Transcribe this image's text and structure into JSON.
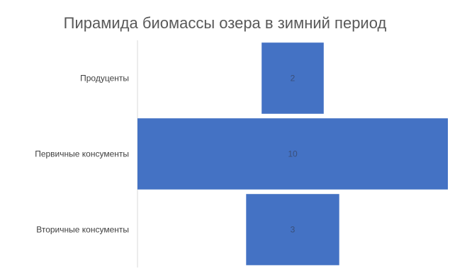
{
  "chart_data": {
    "type": "bar",
    "orientation": "horizontal-centered",
    "title": "Пирамида биомассы озера в зимний период",
    "categories": [
      "Продуценты",
      "Первичные консументы",
      "Вторичные консументы"
    ],
    "values": [
      2,
      10,
      3
    ],
    "data_labels": [
      "2",
      "10",
      "3"
    ],
    "xlim": [
      0,
      10
    ],
    "grid": false,
    "legend": "none",
    "colors": {
      "bar": "#4472c4",
      "axis": "#d9d9d9",
      "label": "#404040",
      "data_label": "#3a4f7a",
      "title": "#595959"
    }
  }
}
